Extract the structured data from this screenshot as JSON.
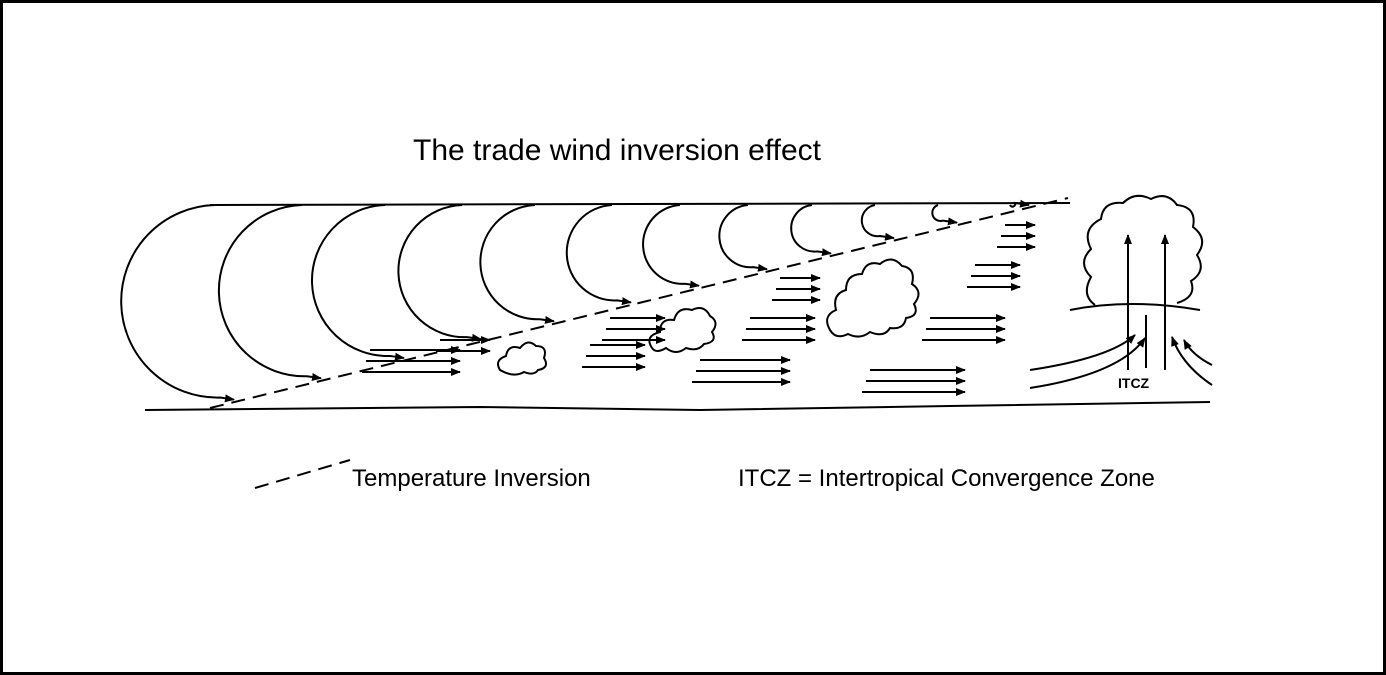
{
  "header": {
    "title": "The trade wind inversion effect"
  },
  "diagram": {
    "itcz_label": "ITCZ"
  },
  "legend": {
    "inversion": "Temperature Inversion",
    "itcz": "ITCZ = Intertropical Convergence Zone"
  }
}
